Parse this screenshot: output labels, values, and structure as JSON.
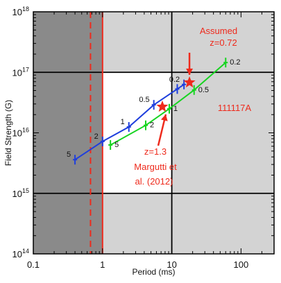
{
  "chart_data": {
    "type": "line",
    "xlabel": "Period (ms)",
    "ylabel": "Field Strength (G)",
    "xscale": "log",
    "yscale": "log",
    "xlim": [
      0.1,
      300
    ],
    "ylim": [
      100000000000000.0,
      1e+18
    ],
    "x_tick_labels": [
      "0.1",
      "1",
      "10",
      "100"
    ],
    "x_ticks": [
      0.1,
      1,
      10,
      100
    ],
    "y_ticks": [
      {
        "value": 100000000000000.0,
        "base": "10",
        "exp": "14"
      },
      {
        "value": 1000000000000000.0,
        "base": "10",
        "exp": "15"
      },
      {
        "value": 1e+16,
        "base": "10",
        "exp": "16"
      },
      {
        "value": 1e+17,
        "base": "10",
        "exp": "17"
      },
      {
        "value": 1e+18,
        "base": "10",
        "exp": "18"
      }
    ],
    "regions": {
      "dark_shaded_x_below": 1.0,
      "light_shaded_x_above": 10,
      "light_shaded_y_above": 1e+17,
      "light_shaded_y_below": 1000000000000000.0,
      "colors": {
        "dark": "#8a8a8a",
        "light": "#d3d3d3",
        "clear": "#ffffff"
      }
    },
    "vertical_lines": [
      {
        "x": 1.0,
        "style": "solid",
        "color": "#ee2a1c"
      },
      {
        "x": 0.67,
        "style": "dashed",
        "color": "#ee2a1c"
      }
    ],
    "series": [
      {
        "color": "#1f3fdd",
        "x": [
          0.4,
          1.0,
          2.4,
          5.5,
          12,
          15
        ],
        "y": [
          3600000000000000.0,
          7200000000000000.0,
          1.25e+16,
          2.9e+16,
          5.3e+16,
          6.3e+16
        ],
        "point_labels": [
          {
            "x": 0.4,
            "y": 3600000000000000.0,
            "text": "5"
          },
          {
            "x": 1.0,
            "y": 7200000000000000.0,
            "text": "2"
          },
          {
            "x": 2.4,
            "y": 1.25e+16,
            "text": "1"
          },
          {
            "x": 5.5,
            "y": 2.9e+16,
            "text": "0.5"
          },
          {
            "x": 15,
            "y": 6.3e+16,
            "text": "0.2"
          }
        ]
      },
      {
        "color": "#17d421",
        "x": [
          1.3,
          4.2,
          9.2,
          21,
          60
        ],
        "y": [
          6300000000000000.0,
          1.33e+16,
          2.5e+16,
          5.1e+16,
          1.45e+17
        ],
        "point_labels": [
          {
            "x": 1.3,
            "y": 6300000000000000.0,
            "text": "5"
          },
          {
            "x": 4.2,
            "y": 1.33e+16,
            "text": "2"
          },
          {
            "x": 9.2,
            "y": 2.5e+16,
            "text": "1"
          },
          {
            "x": 21,
            "y": 5.1e+16,
            "text": "0.5"
          },
          {
            "x": 60,
            "y": 1.45e+17,
            "text": "0.2"
          }
        ]
      }
    ],
    "stars": [
      {
        "x": 18,
        "y": 6.8e+16,
        "color": "#ee2a1c"
      },
      {
        "x": 7.3,
        "y": 2.7e+16,
        "color": "#ee2a1c"
      }
    ],
    "annotations": [
      {
        "lines": [
          "Assumed",
          "z=0.72"
        ],
        "color": "#ee2a1c"
      },
      {
        "lines": [
          "z=1.3",
          "Margutti et",
          "al. (2012)"
        ],
        "color": "#ee2a1c"
      },
      {
        "lines": [
          "111117A"
        ],
        "color": "#ee2a1c"
      }
    ]
  }
}
